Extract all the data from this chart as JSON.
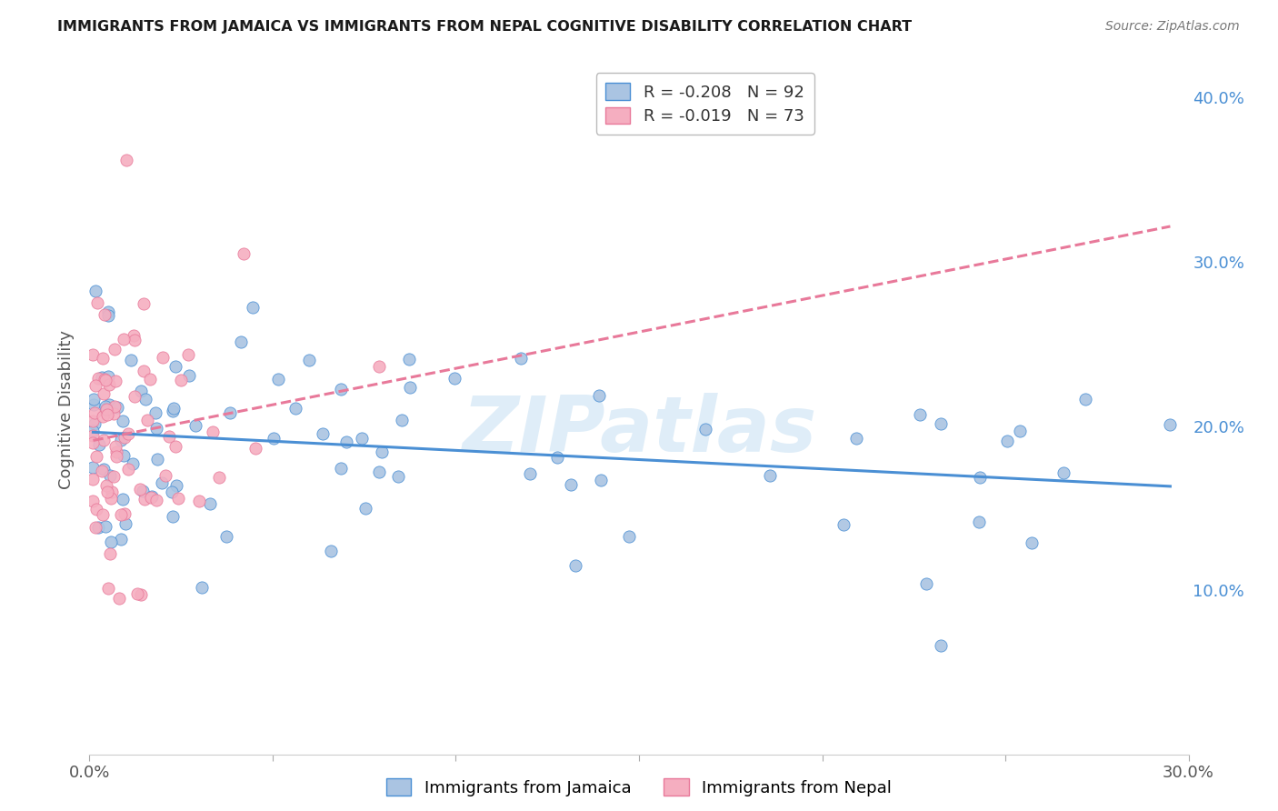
{
  "title": "IMMIGRANTS FROM JAMAICA VS IMMIGRANTS FROM NEPAL COGNITIVE DISABILITY CORRELATION CHART",
  "source": "Source: ZipAtlas.com",
  "ylabel": "Cognitive Disability",
  "xlabel_jamaica": "Immigrants from Jamaica",
  "xlabel_nepal": "Immigrants from Nepal",
  "xlim": [
    0.0,
    0.3
  ],
  "ylim": [
    0.0,
    0.42
  ],
  "R_jamaica": -0.208,
  "N_jamaica": 92,
  "R_nepal": -0.019,
  "N_nepal": 73,
  "color_jamaica": "#aac4e2",
  "color_nepal": "#f5aec0",
  "line_color_jamaica": "#4a8fd4",
  "line_color_nepal": "#e8799a",
  "watermark": "ZIPatlas",
  "background_color": "#ffffff",
  "grid_color": "#d8d8d8"
}
